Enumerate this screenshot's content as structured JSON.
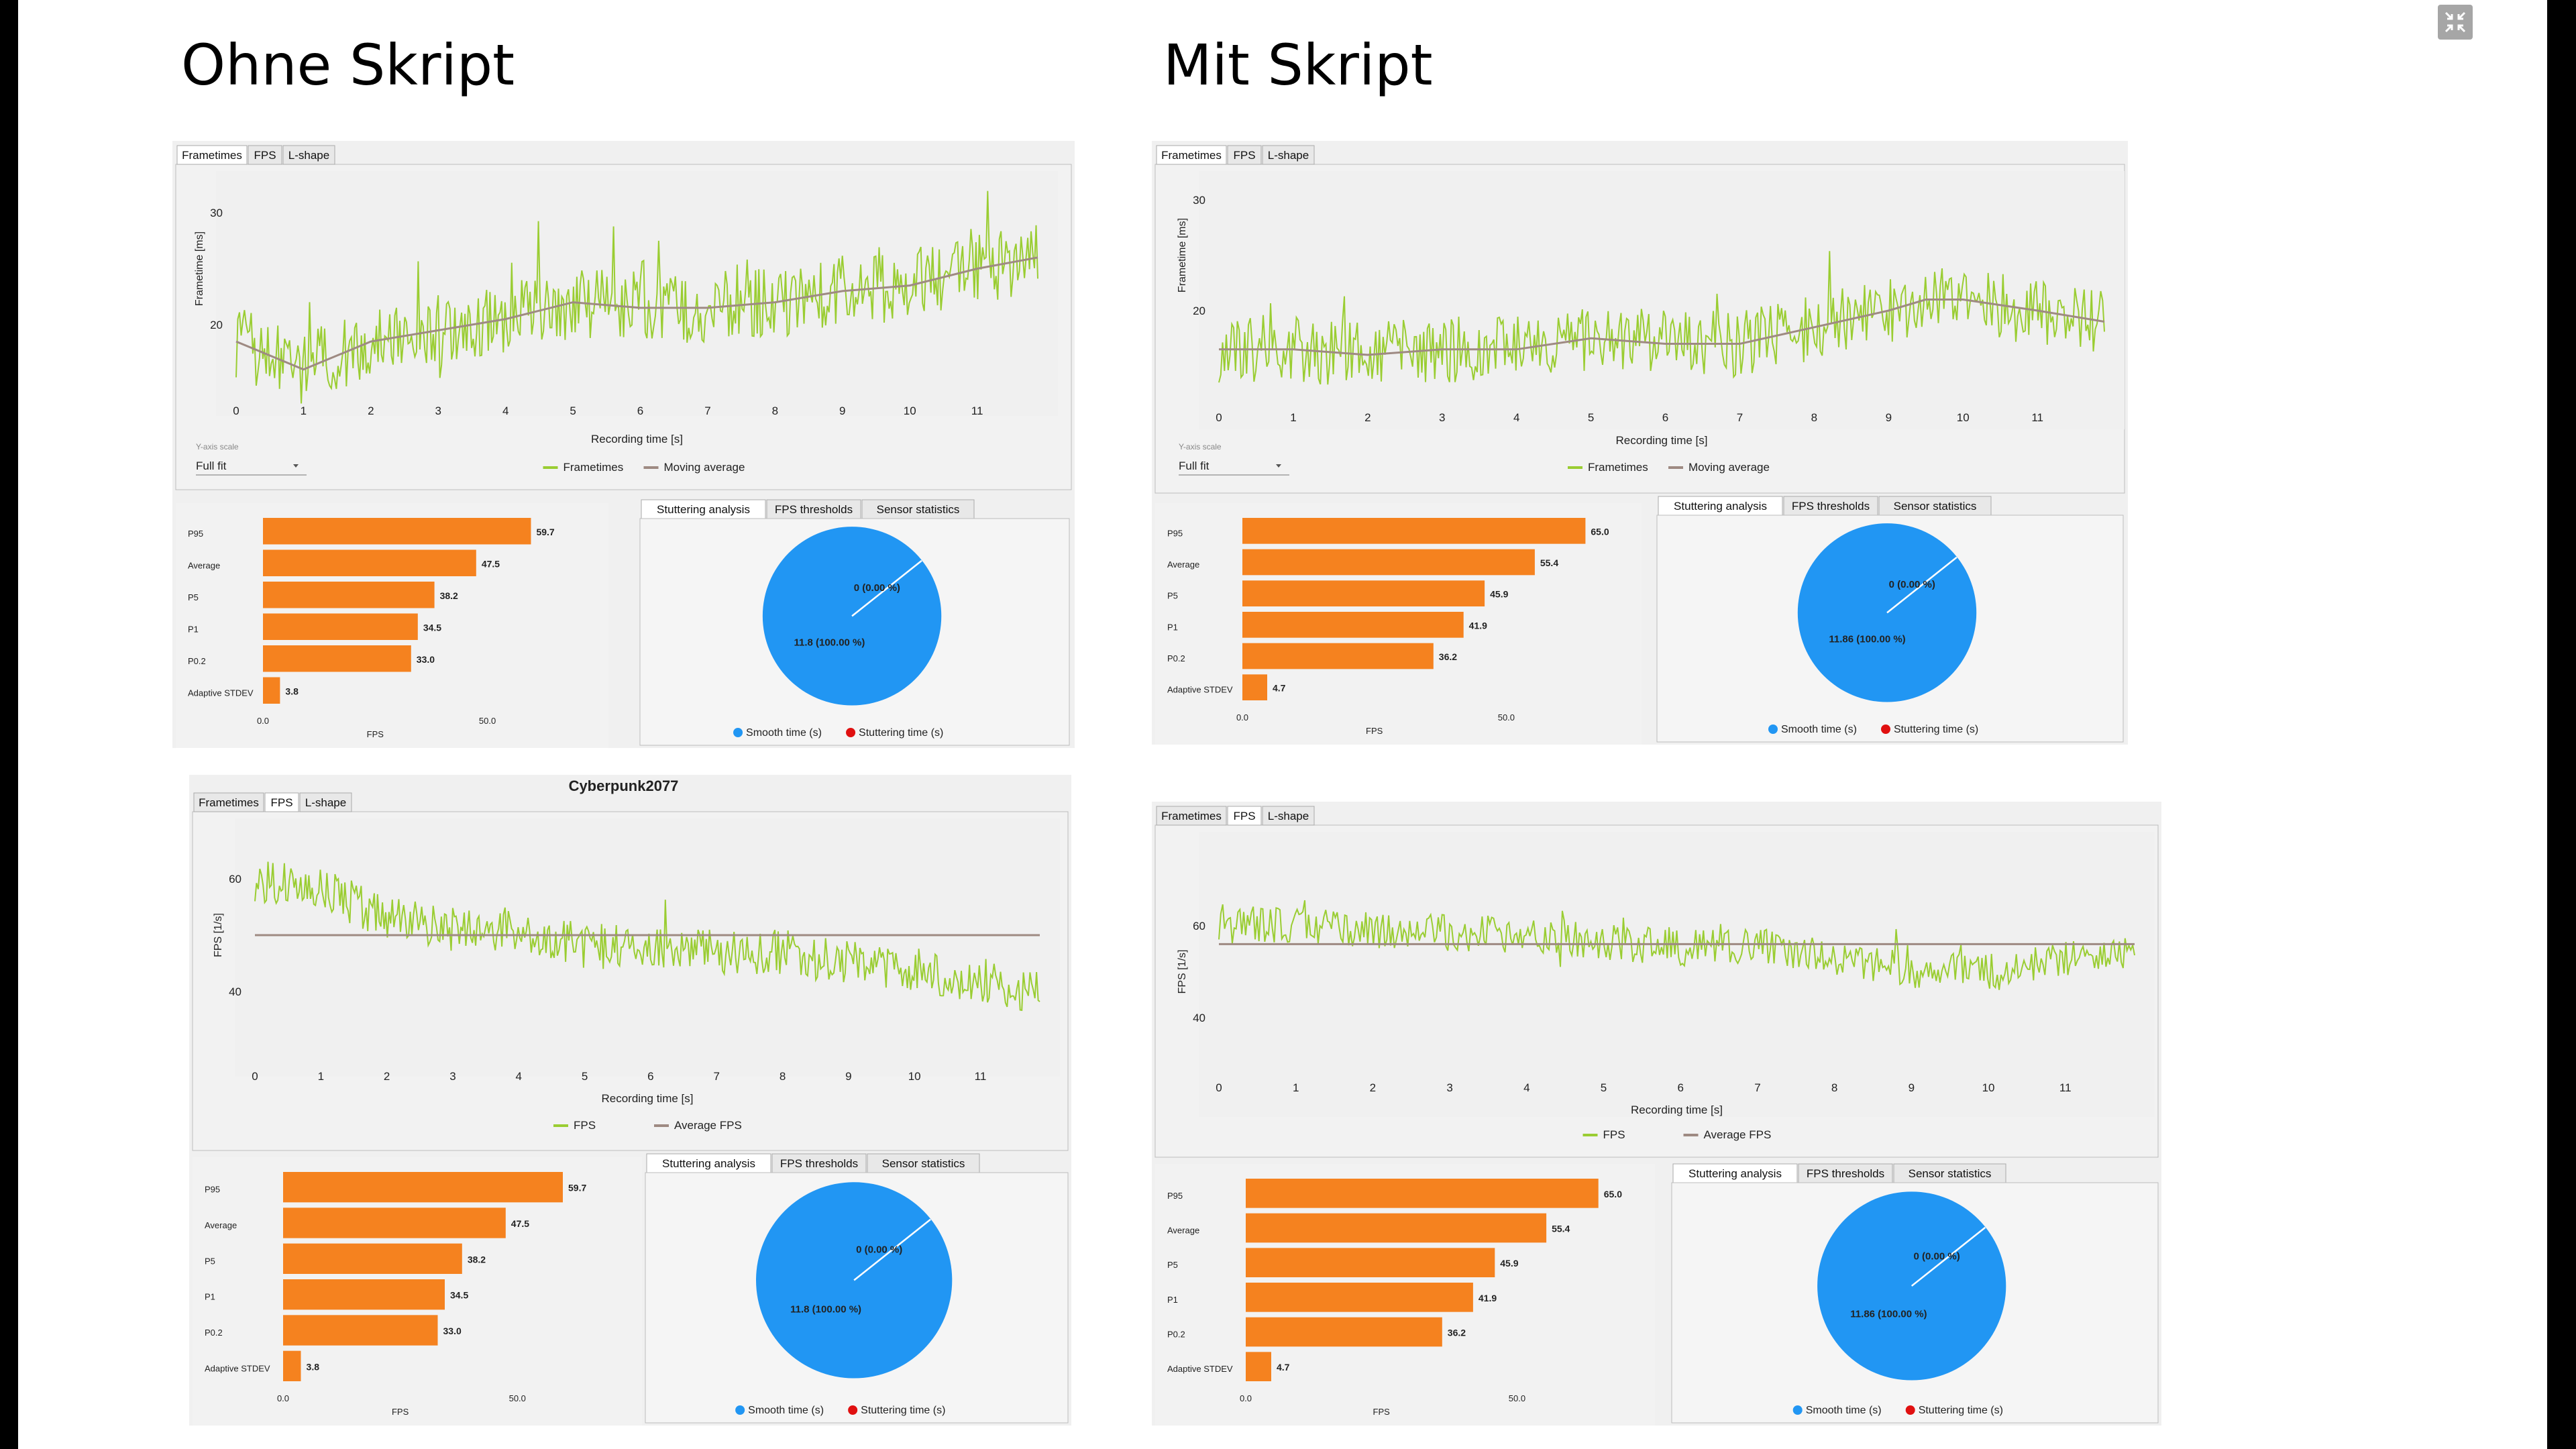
{
  "titles": {
    "left": "Ohne Skript",
    "right": "Mit Skript"
  },
  "common": {
    "tabs": [
      "Frametimes",
      "FPS",
      "L-shape"
    ],
    "bottom_tabs": [
      "Stuttering analysis",
      "FPS thresholds",
      "Sensor statistics"
    ],
    "xlabel": "Recording time [s]",
    "yaxis_scale_label": "Y-axis scale",
    "yaxis_scale_value": "Full fit",
    "bar_axis_label": "FPS",
    "bar_ticks": [
      "0.0",
      "50.0"
    ],
    "pie_legend": [
      "Smooth time (s)",
      "Stuttering time (s)"
    ],
    "x_ticks": [
      "0",
      "1",
      "2",
      "3",
      "4",
      "5",
      "6",
      "7",
      "8",
      "9",
      "10",
      "11"
    ],
    "game_title": "Cyberpunk2077"
  },
  "panels": {
    "tl": {
      "active_tab": "Frametimes",
      "ylabel": "Frametime [ms]",
      "y_ticks": [
        "30",
        "20"
      ],
      "legend": [
        "Frametimes",
        "Moving average"
      ],
      "bars": [
        [
          "P95",
          "59.7"
        ],
        [
          "Average",
          "47.5"
        ],
        [
          "P5",
          "38.2"
        ],
        [
          "P1",
          "34.5"
        ],
        [
          "P0.2",
          "33.0"
        ],
        [
          "Adaptive STDEV",
          "3.8"
        ]
      ],
      "pie_stutter": "0 (0.00 %)",
      "pie_smooth": "11.8 (100.00 %)"
    },
    "tr": {
      "active_tab": "Frametimes",
      "ylabel": "Frametime [ms]",
      "y_ticks": [
        "30",
        "20"
      ],
      "legend": [
        "Frametimes",
        "Moving average"
      ],
      "bars": [
        [
          "P95",
          "65.0"
        ],
        [
          "Average",
          "55.4"
        ],
        [
          "P5",
          "45.9"
        ],
        [
          "P1",
          "41.9"
        ],
        [
          "P0.2",
          "36.2"
        ],
        [
          "Adaptive STDEV",
          "4.7"
        ]
      ],
      "pie_stutter": "0 (0.00 %)",
      "pie_smooth": "11.86 (100.00 %)"
    },
    "bl": {
      "active_tab": "FPS",
      "ylabel": "FPS [1/s]",
      "y_ticks": [
        "60",
        "40"
      ],
      "legend": [
        "FPS",
        "Average FPS"
      ],
      "bars": [
        [
          "P95",
          "59.7"
        ],
        [
          "Average",
          "47.5"
        ],
        [
          "P5",
          "38.2"
        ],
        [
          "P1",
          "34.5"
        ],
        [
          "P0.2",
          "33.0"
        ],
        [
          "Adaptive STDEV",
          "3.8"
        ]
      ],
      "pie_stutter": "0 (0.00 %)",
      "pie_smooth": "11.8 (100.00 %)"
    },
    "br": {
      "active_tab": "FPS",
      "ylabel": "FPS [1/s]",
      "y_ticks": [
        "60",
        "40"
      ],
      "legend": [
        "FPS",
        "Average FPS"
      ],
      "bars": [
        [
          "P95",
          "65.0"
        ],
        [
          "Average",
          "55.4"
        ],
        [
          "P5",
          "45.9"
        ],
        [
          "P1",
          "41.9"
        ],
        [
          "P0.2",
          "36.2"
        ],
        [
          "Adaptive STDEV",
          "4.7"
        ]
      ],
      "pie_stutter": "0 (0.00 %)",
      "pie_smooth": "11.86 (100.00 %)"
    }
  },
  "chart_data": [
    {
      "type": "line",
      "title": "Frametimes – Ohne Skript",
      "xlabel": "Recording time [s]",
      "ylabel": "Frametime [ms]",
      "xlim": [
        0,
        11.9
      ],
      "ylim": [
        12,
        33
      ],
      "series": [
        {
          "name": "Frametimes",
          "trend": [
            [
              0,
              18.5
            ],
            [
              1,
              16
            ],
            [
              2,
              18.5
            ],
            [
              3,
              19.5
            ],
            [
              4,
              20.5
            ],
            [
              5,
              22
            ],
            [
              6,
              21.5
            ],
            [
              7,
              21.5
            ],
            [
              8,
              22
            ],
            [
              9,
              23
            ],
            [
              10,
              23.5
            ],
            [
              11,
              25
            ],
            [
              11.9,
              26
            ]
          ],
          "noise": 3.2
        },
        {
          "name": "Moving average",
          "values": [
            [
              0,
              18.5
            ],
            [
              1,
              16
            ],
            [
              2,
              18.5
            ],
            [
              3,
              19.5
            ],
            [
              4,
              20.5
            ],
            [
              5,
              22
            ],
            [
              6,
              21.5
            ],
            [
              7,
              21.5
            ],
            [
              8,
              22
            ],
            [
              9,
              23
            ],
            [
              10,
              23.5
            ],
            [
              11,
              25
            ],
            [
              11.9,
              26
            ]
          ]
        }
      ]
    },
    {
      "type": "line",
      "title": "Frametimes – Mit Skript",
      "xlabel": "Recording time [s]",
      "ylabel": "Frametime [ms]",
      "xlim": [
        0,
        11.9
      ],
      "ylim": [
        10,
        33
      ],
      "series": [
        {
          "name": "Frametimes",
          "trend": [
            [
              0,
              16.5
            ],
            [
              1,
              16.5
            ],
            [
              2,
              16
            ],
            [
              3,
              16.5
            ],
            [
              4,
              16.5
            ],
            [
              5,
              17.5
            ],
            [
              6,
              17
            ],
            [
              7,
              17
            ],
            [
              8,
              18.5
            ],
            [
              9,
              20
            ],
            [
              9.5,
              21
            ],
            [
              10,
              21
            ],
            [
              11,
              20
            ],
            [
              11.9,
              19
            ]
          ],
          "noise": 3
        },
        {
          "name": "Moving average",
          "values": [
            [
              0,
              16.5
            ],
            [
              1,
              16.5
            ],
            [
              2,
              16
            ],
            [
              3,
              16.5
            ],
            [
              4,
              16.5
            ],
            [
              5,
              17.5
            ],
            [
              6,
              17
            ],
            [
              7,
              17
            ],
            [
              8,
              18.5
            ],
            [
              9,
              20
            ],
            [
              9.5,
              21
            ],
            [
              10,
              21
            ],
            [
              11,
              20
            ],
            [
              11.9,
              19
            ]
          ]
        }
      ]
    },
    {
      "type": "line",
      "title": "FPS – Ohne Skript",
      "xlabel": "Recording time [s]",
      "ylabel": "FPS [1/s]",
      "xlim": [
        0,
        11.9
      ],
      "ylim": [
        30,
        70
      ],
      "series": [
        {
          "name": "FPS",
          "trend": [
            [
              0,
              60
            ],
            [
              1,
              58
            ],
            [
              2,
              53
            ],
            [
              3,
              51
            ],
            [
              4,
              51
            ],
            [
              5,
              48
            ],
            [
              6,
              48
            ],
            [
              7,
              47
            ],
            [
              8,
              47
            ],
            [
              9,
              45
            ],
            [
              10,
              44
            ],
            [
              11,
              42
            ],
            [
              11.9,
              40
            ]
          ],
          "noise": 4
        },
        {
          "name": "Average FPS",
          "values": [
            [
              0,
              50
            ],
            [
              11.9,
              50
            ]
          ]
        }
      ]
    },
    {
      "type": "line",
      "title": "FPS – Mit Skript",
      "xlabel": "Recording time [s]",
      "ylabel": "FPS [1/s]",
      "xlim": [
        0,
        11.9
      ],
      "ylim": [
        30,
        75
      ],
      "series": [
        {
          "name": "FPS",
          "trend": [
            [
              0,
              61
            ],
            [
              2,
              59
            ],
            [
              4,
              58
            ],
            [
              6,
              55
            ],
            [
              7,
              56
            ],
            [
              8,
              53
            ],
            [
              9,
              50
            ],
            [
              10,
              50
            ],
            [
              11,
              53
            ],
            [
              11.9,
              55
            ]
          ],
          "noise": 4
        },
        {
          "name": "Average FPS",
          "values": [
            [
              0,
              56
            ],
            [
              11.9,
              56
            ]
          ]
        }
      ]
    },
    {
      "type": "bar",
      "title": "Ohne Skript",
      "xlabel": "FPS",
      "categories": [
        "P95",
        "Average",
        "P5",
        "P1",
        "P0.2",
        "Adaptive STDEV"
      ],
      "values": [
        59.7,
        47.5,
        38.2,
        34.5,
        33.0,
        3.8
      ]
    },
    {
      "type": "bar",
      "title": "Mit Skript",
      "xlabel": "FPS",
      "categories": [
        "P95",
        "Average",
        "P5",
        "P1",
        "P0.2",
        "Adaptive STDEV"
      ],
      "values": [
        65.0,
        55.4,
        45.9,
        41.9,
        36.2,
        4.7
      ]
    },
    {
      "type": "pie",
      "title": "Stuttering analysis – Ohne Skript",
      "categories": [
        "Smooth time (s)",
        "Stuttering time (s)"
      ],
      "values": [
        11.8,
        0
      ]
    },
    {
      "type": "pie",
      "title": "Stuttering analysis – Mit Skript",
      "categories": [
        "Smooth time (s)",
        "Stuttering time (s)"
      ],
      "values": [
        11.86,
        0
      ]
    }
  ]
}
